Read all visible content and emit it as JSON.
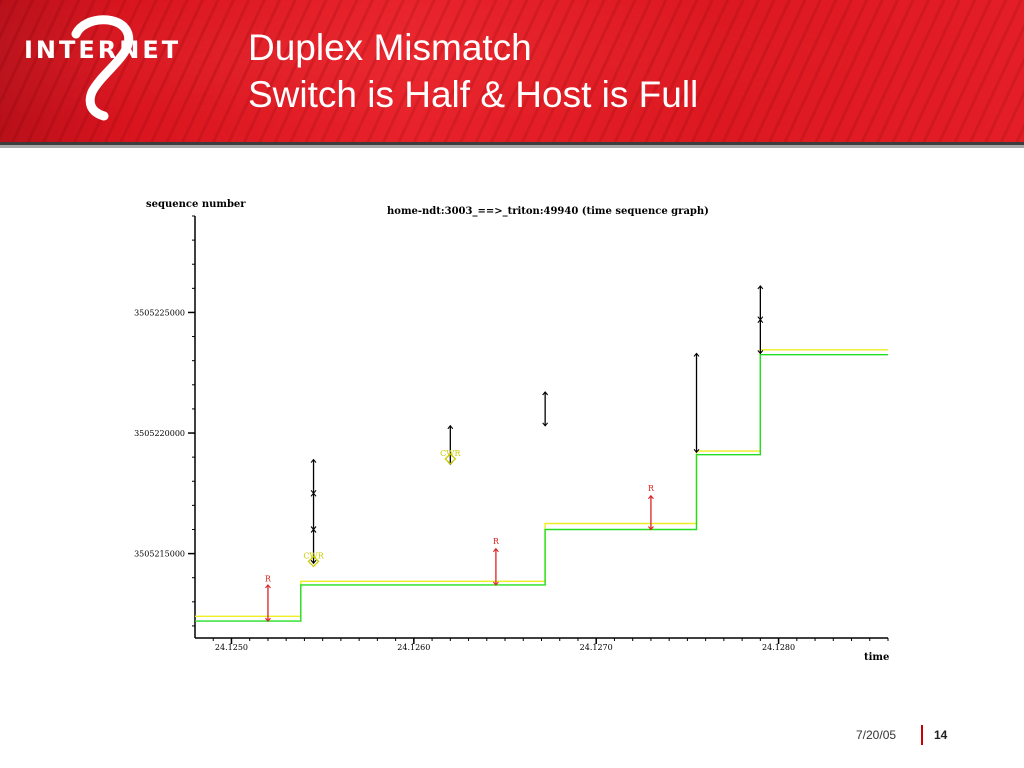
{
  "header": {
    "logo_text": "INTERNET",
    "title_line1": "Duplex Mismatch",
    "title_line2": "Switch is Half & Host is Full"
  },
  "colors": {
    "header_red": "#e22028",
    "step_green": "#22dd22",
    "step_yellow": "#eeee22",
    "seg_black": "#000000",
    "retrans_red": "#dd2222"
  },
  "chart_data": {
    "type": "line",
    "title": "home-ndt:3003_==>_triton:49940 (time sequence graph)",
    "ylabel": "sequence number",
    "xlabel": "time",
    "xlim": [
      24.1248,
      24.1286
    ],
    "ylim": [
      3505211500,
      3505229000
    ],
    "x_ticks": [
      24.125,
      24.126,
      24.127,
      24.128
    ],
    "x_tick_labels": [
      "24.1250",
      "24.1260",
      "24.1270",
      "24.1280"
    ],
    "y_ticks": [
      3505215000,
      3505220000,
      3505225000
    ],
    "y_tick_labels": [
      "3505215000",
      "3505220000",
      "3505225000"
    ],
    "grid": false,
    "series": [
      {
        "kind": "step",
        "color": "#eeee22",
        "x": [
          24.1248,
          24.12538,
          24.12538,
          24.12672,
          24.12672,
          24.12755,
          24.12755,
          24.1279,
          24.1279,
          24.1286
        ],
        "y": [
          3505212400,
          3505212400,
          3505213850,
          3505213850,
          3505216250,
          3505216250,
          3505219250,
          3505219250,
          3505223450,
          3505223450
        ]
      },
      {
        "kind": "step",
        "color": "#22dd22",
        "x": [
          24.1248,
          24.12538,
          24.12538,
          24.12672,
          24.12672,
          24.12755,
          24.12755,
          24.1279,
          24.1279,
          24.1286
        ],
        "y": [
          3505212200,
          3505212200,
          3505213700,
          3505213700,
          3505216000,
          3505216000,
          3505219100,
          3505219100,
          3505223250,
          3505223250
        ]
      },
      {
        "kind": "segments",
        "color": "#000000",
        "items": [
          {
            "x": 24.12545,
            "y0": 3505214600,
            "y1": 3505216000
          },
          {
            "x": 24.12545,
            "y0": 3505216000,
            "y1": 3505217500
          },
          {
            "x": 24.12545,
            "y0": 3505217500,
            "y1": 3505218900
          },
          {
            "x": 24.1262,
            "y0": 3505218700,
            "y1": 3505220300
          },
          {
            "x": 24.12672,
            "y0": 3505220300,
            "y1": 3505221700
          },
          {
            "x": 24.12755,
            "y0": 3505219200,
            "y1": 3505223300
          },
          {
            "x": 24.1279,
            "y0": 3505223300,
            "y1": 3505224700
          },
          {
            "x": 24.1279,
            "y0": 3505224700,
            "y1": 3505226100
          }
        ]
      },
      {
        "kind": "segments",
        "color": "#dd2222",
        "items": [
          {
            "x": 24.1252,
            "y0": 3505212200,
            "y1": 3505213700
          },
          {
            "x": 24.12645,
            "y0": 3505213700,
            "y1": 3505215200
          },
          {
            "x": 24.1273,
            "y0": 3505216000,
            "y1": 3505217400
          }
        ]
      }
    ],
    "annotations": [
      {
        "text": "R",
        "x": 24.1252,
        "y": 3505213850,
        "color": "#dd2222"
      },
      {
        "text": "R",
        "x": 24.12645,
        "y": 3505215400,
        "color": "#dd2222"
      },
      {
        "text": "R",
        "x": 24.1273,
        "y": 3505217600,
        "color": "#dd2222"
      },
      {
        "text": "CWR",
        "x": 24.12545,
        "y": 3505214800,
        "color": "#cccc00"
      },
      {
        "text": "CWR",
        "x": 24.1262,
        "y": 3505219050,
        "color": "#cccc00"
      }
    ]
  },
  "footer": {
    "date": "7/20/05",
    "page": "14"
  }
}
